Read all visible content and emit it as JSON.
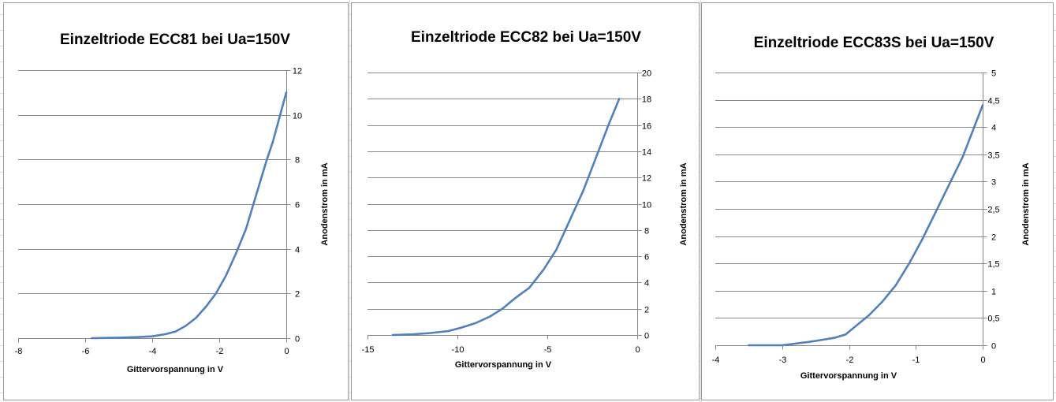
{
  "chart_data": [
    {
      "type": "line",
      "title": "Einzeltriode ECC81 bei Ua=150V",
      "xlabel": "Gittervorspannung  in V",
      "ylabel": "Anodenstrom in mA",
      "xlim": [
        -8,
        0
      ],
      "ylim": [
        0,
        12
      ],
      "xticks": [
        -8,
        -6,
        -4,
        -2,
        0
      ],
      "yticks": [
        0,
        2,
        4,
        6,
        8,
        10,
        12
      ],
      "xtick_labels": [
        "-8",
        "-6",
        "-4",
        "-2",
        "0"
      ],
      "ytick_labels": [
        "0",
        "2",
        "4",
        "6",
        "8",
        "10",
        "12"
      ],
      "grid": true,
      "series": [
        {
          "color": "#4f81bd",
          "x": [
            -5.8,
            -5.0,
            -4.4,
            -4.0,
            -3.6,
            -3.3,
            -3.0,
            -2.7,
            -2.4,
            -2.1,
            -1.8,
            -1.5,
            -1.2,
            -1.0,
            -0.8,
            -0.6,
            -0.4,
            -0.2,
            0.0
          ],
          "y": [
            0.0,
            0.02,
            0.05,
            0.08,
            0.18,
            0.3,
            0.55,
            0.9,
            1.4,
            2.0,
            2.8,
            3.8,
            4.9,
            5.9,
            6.9,
            7.9,
            8.8,
            9.9,
            11.0
          ]
        }
      ]
    },
    {
      "type": "line",
      "title": "Einzeltriode ECC82 bei Ua=150V",
      "xlabel": "Gittervorspannung  in V",
      "ylabel": "Anodenstrom in mA",
      "xlim": [
        -15,
        0
      ],
      "ylim": [
        0,
        20
      ],
      "xticks": [
        -15,
        -10,
        -5,
        0
      ],
      "yticks": [
        0,
        2,
        4,
        6,
        8,
        10,
        12,
        14,
        16,
        18,
        20
      ],
      "xtick_labels": [
        "-15",
        "-10",
        "-5",
        "0"
      ],
      "ytick_labels": [
        "0",
        "2",
        "4",
        "6",
        "8",
        "10",
        "12",
        "14",
        "16",
        "18",
        "20"
      ],
      "grid": true,
      "series": [
        {
          "color": "#4f81bd",
          "x": [
            -13.6,
            -12.5,
            -11.5,
            -10.5,
            -9.8,
            -9.0,
            -8.2,
            -7.5,
            -6.8,
            -6.0,
            -5.2,
            -4.5,
            -3.8,
            -3.0,
            -2.3,
            -1.6,
            -1.0
          ],
          "y": [
            0.0,
            0.05,
            0.15,
            0.3,
            0.55,
            0.9,
            1.4,
            2.0,
            2.8,
            3.6,
            5.0,
            6.5,
            8.6,
            11.0,
            13.5,
            16.0,
            18.0
          ]
        }
      ]
    },
    {
      "type": "line",
      "title": "Einzeltriode ECC83S bei Ua=150V",
      "xlabel": "Gittervorspannung  in V",
      "ylabel": "Anodenstrom in mA",
      "xlim": [
        -4,
        0
      ],
      "ylim": [
        0,
        5
      ],
      "xticks": [
        -4,
        -3,
        -2,
        -1,
        0
      ],
      "yticks": [
        0,
        0.5,
        1,
        1.5,
        2,
        2.5,
        3,
        3.5,
        4,
        4.5,
        5
      ],
      "xtick_labels": [
        "-4",
        "-3",
        "-2",
        "-1",
        "0"
      ],
      "ytick_labels": [
        "0",
        "0,5",
        "1",
        "1,5",
        "2",
        "2,5",
        "3",
        "3,5",
        "4",
        "4,5",
        "5"
      ],
      "grid": true,
      "series": [
        {
          "color": "#4f81bd",
          "x": [
            -3.5,
            -3.0,
            -2.8,
            -2.6,
            -2.4,
            -2.2,
            -2.05,
            -1.9,
            -1.7,
            -1.5,
            -1.3,
            -1.1,
            -0.9,
            -0.7,
            -0.5,
            -0.3,
            0.0
          ],
          "y": [
            0.0,
            0.0,
            0.03,
            0.06,
            0.1,
            0.14,
            0.2,
            0.35,
            0.55,
            0.8,
            1.1,
            1.5,
            1.95,
            2.45,
            2.95,
            3.45,
            4.4
          ]
        }
      ]
    }
  ]
}
